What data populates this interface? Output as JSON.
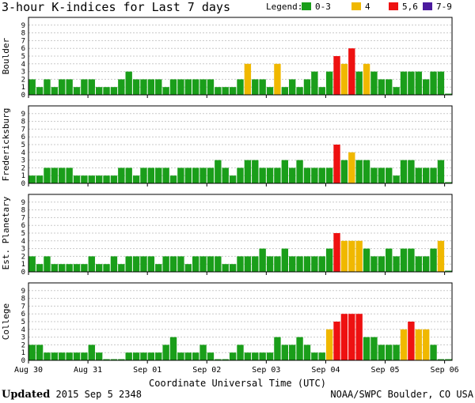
{
  "header": {
    "title": "3-hour K-indices for Last 7 days",
    "legend_title": "Legend:",
    "legend": [
      {
        "label": "0-3",
        "color": "#1a9e1a"
      },
      {
        "label": "4",
        "color": "#f0b800"
      },
      {
        "label": "5,6",
        "color": "#ee1111"
      },
      {
        "label": "7-9",
        "color": "#4b1a9e"
      }
    ]
  },
  "footer": {
    "updated_label": "Updated",
    "updated_value": "2015 Sep  5 2348",
    "credit": "NOAA/SWPC Boulder, CO USA"
  },
  "chart_data": [
    {
      "type": "bar",
      "title": "Boulder",
      "ylabel": "Boulder",
      "xlabel": "Coordinate Universal Time (UTC)",
      "ylim": [
        0,
        9
      ],
      "yticks": [
        "0",
        "1",
        "2",
        "3",
        "4",
        "5",
        "6",
        "7",
        "8",
        "9"
      ],
      "x_tick_labels": [
        "Aug 30",
        "Aug 31",
        "Sep 01",
        "Sep 02",
        "Sep 03",
        "Sep 04",
        "Sep 05",
        "Sep 06"
      ],
      "values": [
        2,
        1,
        2,
        1,
        2,
        2,
        1,
        2,
        2,
        1,
        1,
        1,
        2,
        3,
        2,
        2,
        2,
        2,
        1,
        2,
        2,
        2,
        2,
        2,
        2,
        1,
        1,
        1,
        2,
        4,
        2,
        2,
        1,
        4,
        1,
        2,
        1,
        2,
        3,
        1,
        3,
        5,
        4,
        6,
        3,
        4,
        3,
        2,
        2,
        1,
        3,
        3,
        3,
        2,
        3,
        3,
        0
      ]
    },
    {
      "type": "bar",
      "title": "Fredericksburg",
      "ylabel": "Fredericksburg",
      "ylim": [
        0,
        9
      ],
      "yticks": [
        "0",
        "1",
        "2",
        "3",
        "4",
        "5",
        "6",
        "7",
        "8",
        "9"
      ],
      "x_tick_labels": [
        "Aug 30",
        "Aug 31",
        "Sep 01",
        "Sep 02",
        "Sep 03",
        "Sep 04",
        "Sep 05",
        "Sep 06"
      ],
      "values": [
        1,
        1,
        2,
        2,
        2,
        2,
        1,
        1,
        1,
        1,
        1,
        1,
        2,
        2,
        1,
        2,
        2,
        2,
        2,
        1,
        2,
        2,
        2,
        2,
        2,
        3,
        2,
        1,
        2,
        3,
        3,
        2,
        2,
        2,
        3,
        2,
        3,
        2,
        2,
        2,
        2,
        5,
        3,
        4,
        3,
        3,
        2,
        2,
        2,
        1,
        3,
        3,
        2,
        2,
        2,
        3,
        0
      ]
    },
    {
      "type": "bar",
      "title": "Est. Planetary",
      "ylabel": "Est. Planetary",
      "ylim": [
        0,
        9
      ],
      "yticks": [
        "0",
        "1",
        "2",
        "3",
        "4",
        "5",
        "6",
        "7",
        "8",
        "9"
      ],
      "x_tick_labels": [
        "Aug 30",
        "Aug 31",
        "Sep 01",
        "Sep 02",
        "Sep 03",
        "Sep 04",
        "Sep 05",
        "Sep 06"
      ],
      "values": [
        2,
        1,
        2,
        1,
        1,
        1,
        1,
        1,
        2,
        1,
        1,
        2,
        1,
        2,
        2,
        2,
        2,
        1,
        2,
        2,
        2,
        1,
        2,
        2,
        2,
        2,
        1,
        1,
        2,
        2,
        2,
        3,
        2,
        2,
        3,
        2,
        2,
        2,
        2,
        2,
        3,
        5,
        4,
        4,
        4,
        3,
        2,
        2,
        3,
        2,
        3,
        3,
        2,
        2,
        3,
        4,
        0
      ]
    },
    {
      "type": "bar",
      "title": "College",
      "ylabel": "College",
      "ylim": [
        0,
        9
      ],
      "yticks": [
        "0",
        "1",
        "2",
        "3",
        "4",
        "5",
        "6",
        "7",
        "8",
        "9"
      ],
      "x_tick_labels": [
        "Aug 30",
        "Aug 31",
        "Sep 01",
        "Sep 02",
        "Sep 03",
        "Sep 04",
        "Sep 05",
        "Sep 06"
      ],
      "values": [
        2,
        2,
        1,
        1,
        1,
        1,
        1,
        1,
        2,
        1,
        0,
        0,
        0,
        1,
        1,
        1,
        1,
        1,
        2,
        3,
        1,
        1,
        1,
        2,
        1,
        0,
        0,
        1,
        2,
        1,
        1,
        1,
        1,
        3,
        2,
        2,
        3,
        2,
        1,
        1,
        4,
        5,
        6,
        6,
        6,
        3,
        3,
        2,
        2,
        2,
        4,
        5,
        4,
        4,
        2,
        0,
        0
      ]
    }
  ]
}
